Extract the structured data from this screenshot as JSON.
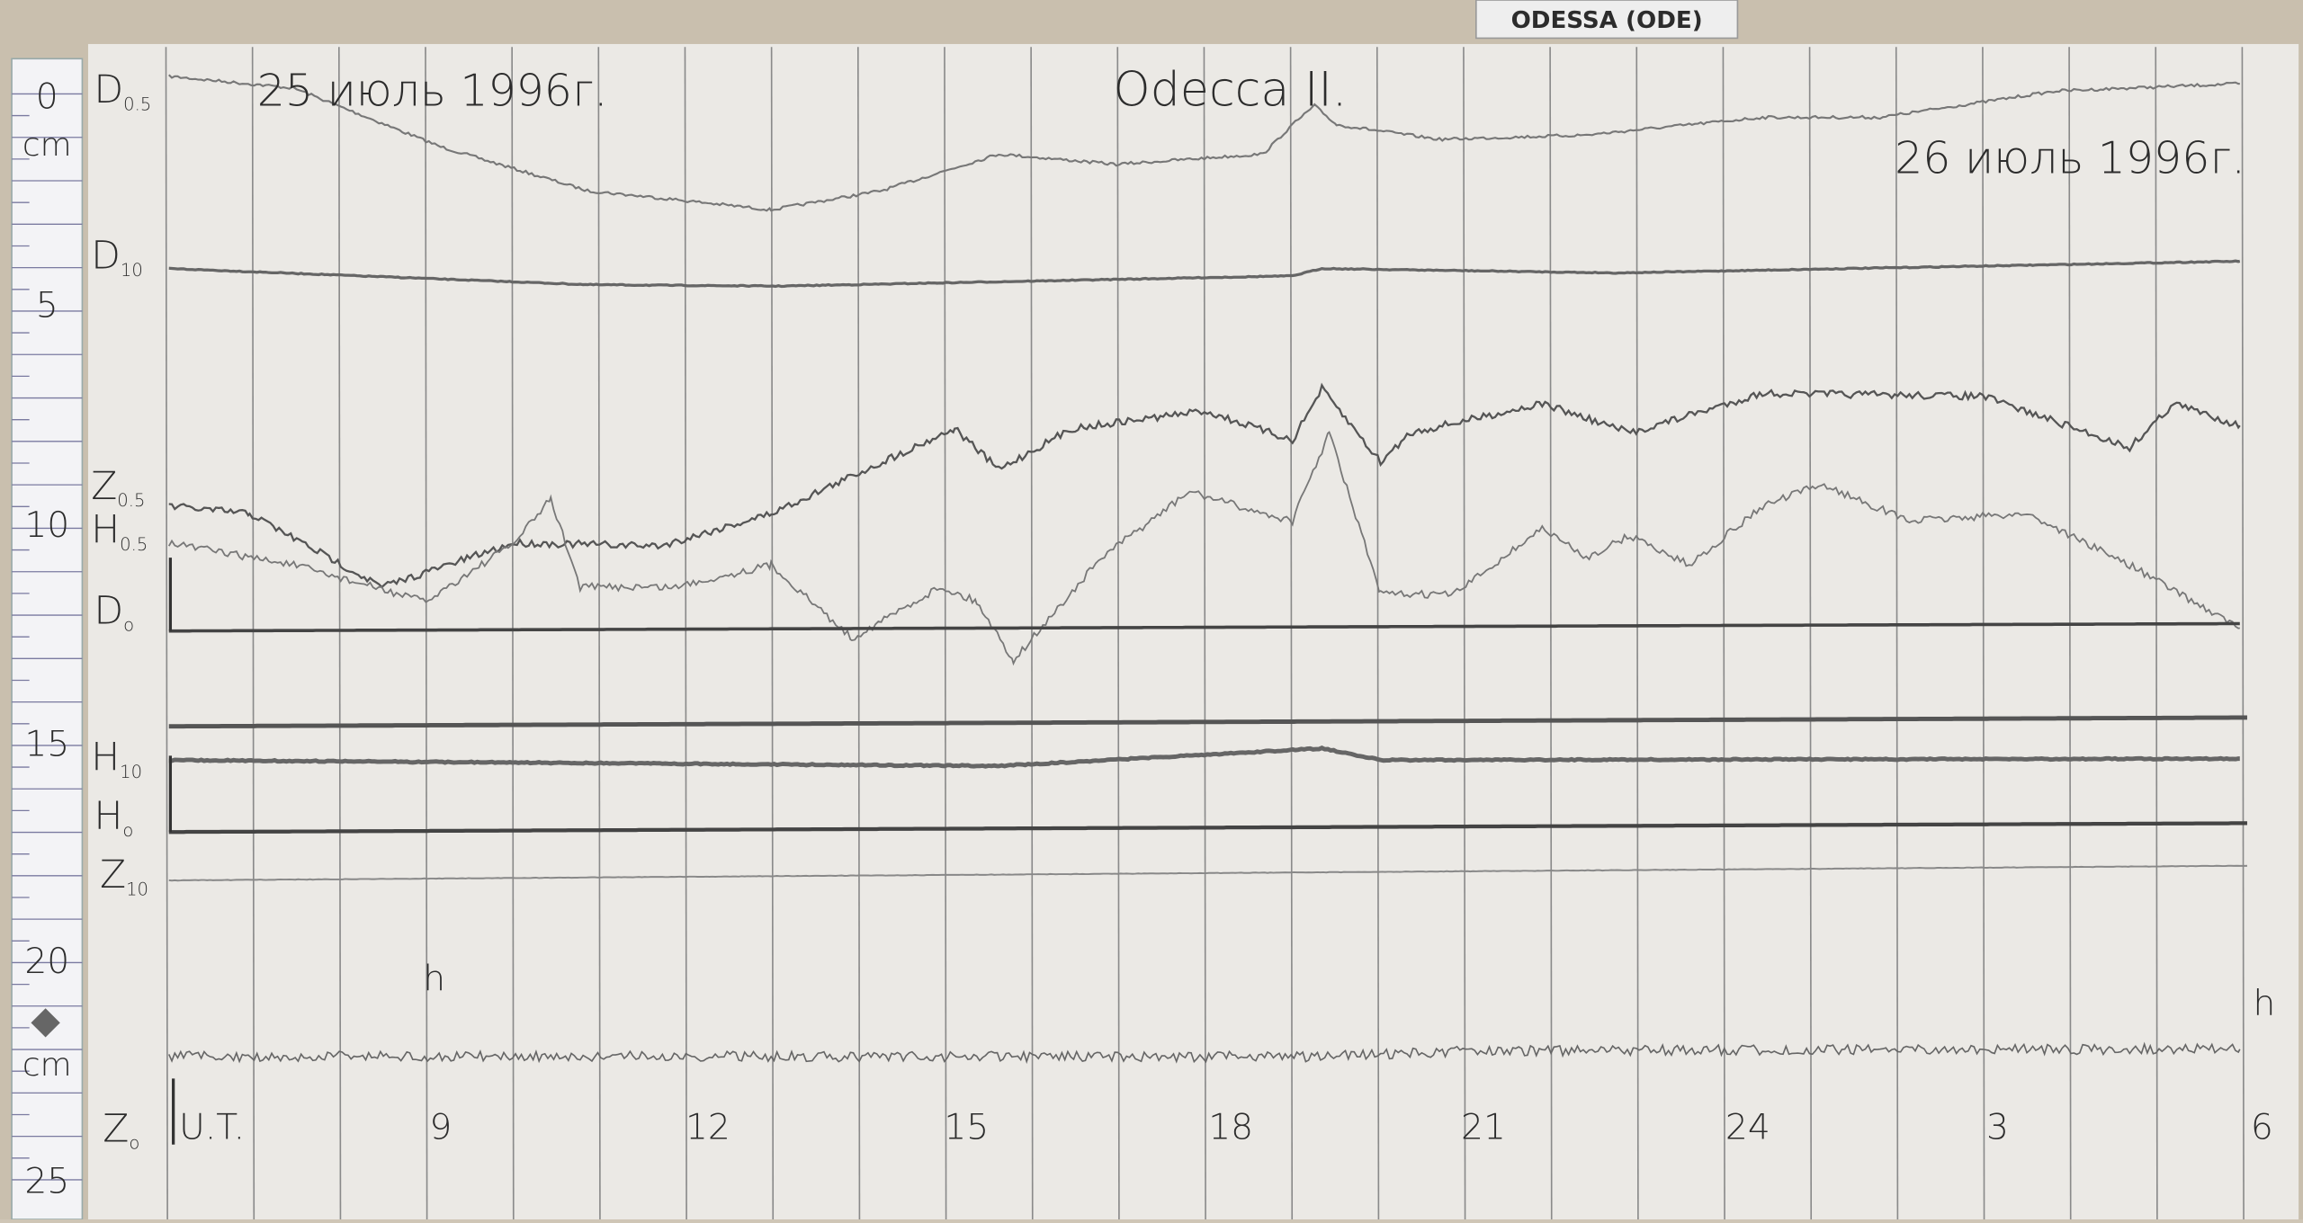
{
  "station_tag": "ODESSA (ODE)",
  "header": {
    "date_start": "25 июль 1996г.",
    "station": "Odecca II.",
    "date_end": "26 июль 1996г."
  },
  "ruler": {
    "labels": [
      "0",
      "cm",
      "5",
      "10",
      "15",
      "20",
      "cm",
      "25"
    ]
  },
  "traces": [
    {
      "letter": "D",
      "sub": "0.5"
    },
    {
      "letter": "D",
      "sub": "10"
    },
    {
      "letter": "Z",
      "sub": "0.5"
    },
    {
      "letter": "H",
      "sub": "0.5"
    },
    {
      "letter": "D",
      "sub": "o"
    },
    {
      "letter": "H",
      "sub": "10"
    },
    {
      "letter": "H",
      "sub": "o"
    },
    {
      "letter": "Z",
      "sub": "10"
    },
    {
      "letter": "Z",
      "sub": "o"
    }
  ],
  "hour_unit": [
    "h",
    "h"
  ],
  "time_axis": {
    "label": "U.T.",
    "hours": [
      "9",
      "12",
      "15",
      "18",
      "21",
      "24",
      "3",
      "6"
    ]
  }
}
